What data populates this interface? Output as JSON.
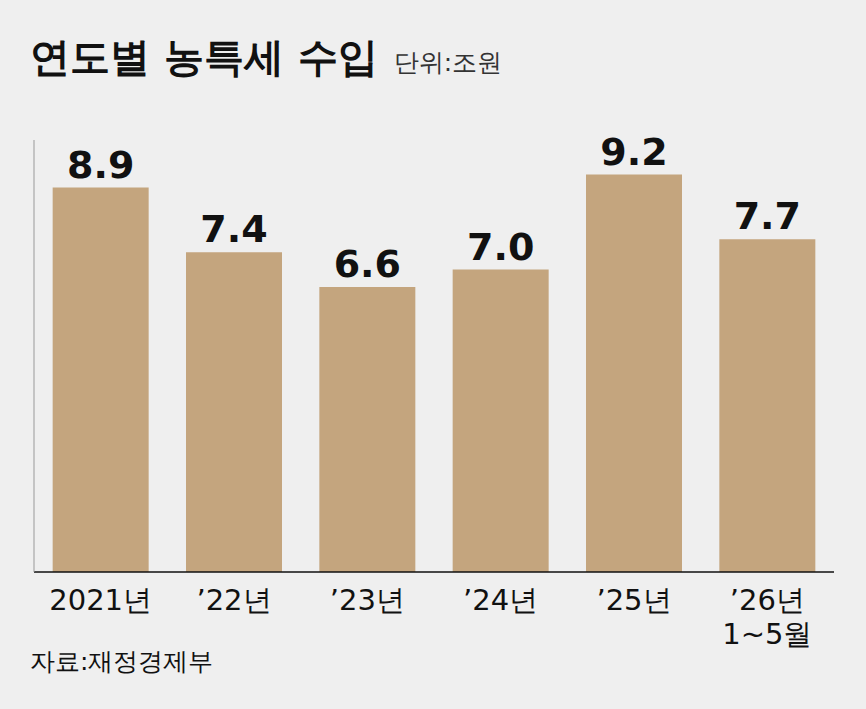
{
  "chart_data": {
    "type": "bar",
    "title": "연도별 농특세 수입",
    "subtitle": "단위:조원",
    "source": "자료:재정경제부",
    "categories": [
      "2021년",
      "’22년",
      "’23년",
      "’24년",
      "’25년",
      "’26년 1~5월"
    ],
    "values": [
      8.9,
      7.4,
      6.6,
      7.0,
      9.2,
      7.7
    ],
    "value_labels": [
      "8.9",
      "7.4",
      "6.6",
      "7.0",
      "9.2",
      "7.7"
    ],
    "color": "#c4a57e",
    "ylim": [
      0,
      10
    ],
    "data_labels": true,
    "tick_labels": "x",
    "grid": false
  }
}
